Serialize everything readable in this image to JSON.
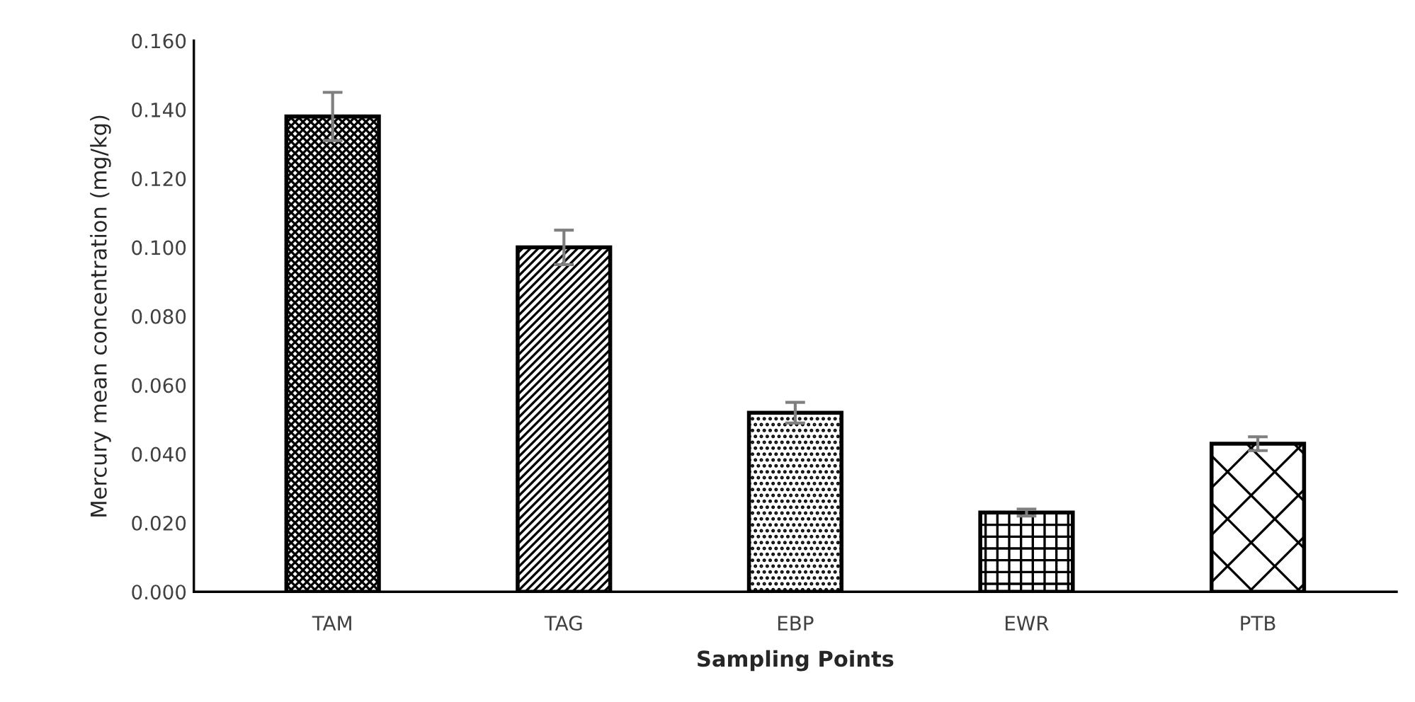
{
  "chart_data": {
    "type": "bar",
    "xlabel": "Sampling Points",
    "ylabel": "Mercury mean concentration (mg/kg)",
    "categories": [
      "TAM",
      "TAG",
      "EBP",
      "EWR",
      "PTB"
    ],
    "values": [
      0.138,
      0.1,
      0.052,
      0.023,
      0.043
    ],
    "errors": [
      0.007,
      0.005,
      0.003,
      0.001,
      0.002
    ],
    "color": "#000000",
    "ylim": [
      0,
      0.16
    ],
    "yticks": [
      {
        "value": 0,
        "label": "0.000"
      },
      {
        "value": 0.02,
        "label": "0.020"
      },
      {
        "value": 0.04,
        "label": "0.040"
      },
      {
        "value": 0.06,
        "label": "0.060"
      },
      {
        "value": 0.08,
        "label": "0.080"
      },
      {
        "value": 0.1,
        "label": "0.100"
      },
      {
        "value": 0.12,
        "label": "0.120"
      },
      {
        "value": 0.14,
        "label": "0.140"
      },
      {
        "value": 0.16,
        "label": "0.160"
      }
    ],
    "grid": false
  }
}
